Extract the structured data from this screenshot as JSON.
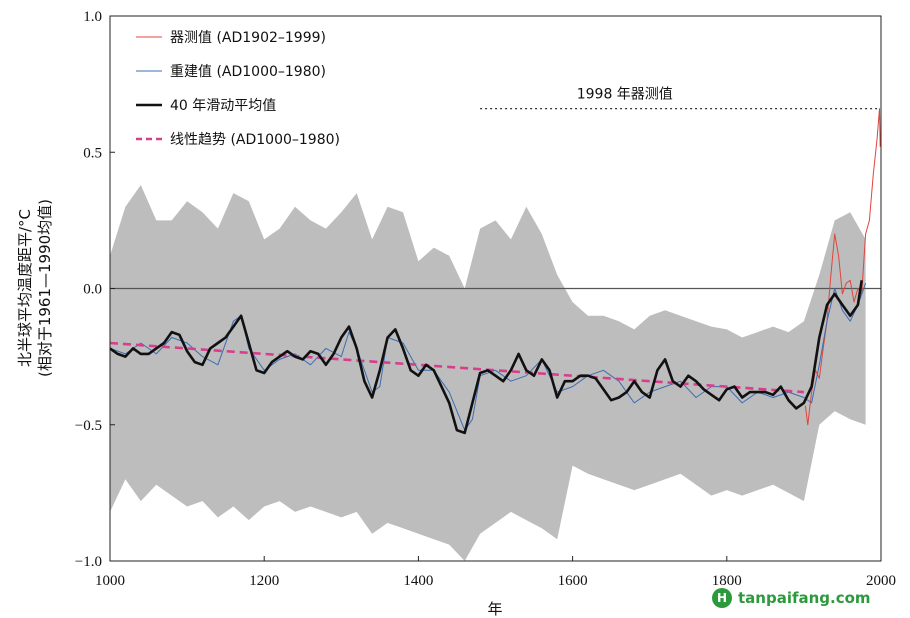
{
  "chart_data": {
    "type": "line",
    "xlabel": "年",
    "ylabel": [
      "北半球平均温度距平/°C",
      "(相对于1961—1990均值)"
    ],
    "xlim": [
      1000,
      2000
    ],
    "ylim": [
      -1.0,
      1.0
    ],
    "x_ticks": [
      1000,
      1200,
      1400,
      1600,
      1800,
      2000
    ],
    "y_ticks": [
      -1.0,
      -0.5,
      0.0,
      0.5,
      1.0
    ],
    "y_tick_labels": [
      "−1.0",
      "−0.5",
      "0.0",
      "0.5",
      "1.0"
    ],
    "legend_position": "top-left",
    "zero_line": 0.0,
    "annotation": {
      "text": "1998 年器测值",
      "value": 0.66,
      "x_range": [
        1480,
        1998
      ]
    },
    "series": [
      {
        "name": "器测值 (AD1902–1999)",
        "style": "thin-line",
        "color": "#e0443c",
        "x": [
          1902,
          1905,
          1910,
          1915,
          1920,
          1925,
          1930,
          1935,
          1940,
          1945,
          1950,
          1955,
          1960,
          1965,
          1970,
          1975,
          1980,
          1985,
          1990,
          1995,
          1998,
          1999
        ],
        "y": [
          -0.43,
          -0.5,
          -0.38,
          -0.3,
          -0.33,
          -0.22,
          -0.12,
          0.05,
          0.2,
          0.12,
          -0.02,
          0.02,
          0.03,
          -0.05,
          0.0,
          -0.02,
          0.2,
          0.25,
          0.42,
          0.55,
          0.66,
          0.52
        ]
      },
      {
        "name": "重建值 (AD1000–1980)",
        "style": "thin-line",
        "color": "#3d6db5",
        "x": [
          1000,
          1020,
          1040,
          1060,
          1080,
          1100,
          1120,
          1140,
          1160,
          1170,
          1180,
          1200,
          1220,
          1240,
          1260,
          1280,
          1300,
          1310,
          1320,
          1340,
          1350,
          1360,
          1380,
          1400,
          1420,
          1440,
          1460,
          1470,
          1480,
          1500,
          1520,
          1540,
          1560,
          1580,
          1600,
          1620,
          1640,
          1660,
          1680,
          1700,
          1720,
          1740,
          1760,
          1780,
          1800,
          1820,
          1840,
          1860,
          1880,
          1900,
          1910,
          1920,
          1930,
          1940,
          1950,
          1960,
          1970,
          1980
        ],
        "y": [
          -0.22,
          -0.24,
          -0.2,
          -0.24,
          -0.18,
          -0.2,
          -0.25,
          -0.28,
          -0.12,
          -0.1,
          -0.22,
          -0.3,
          -0.26,
          -0.24,
          -0.28,
          -0.22,
          -0.25,
          -0.16,
          -0.22,
          -0.38,
          -0.36,
          -0.18,
          -0.2,
          -0.3,
          -0.3,
          -0.38,
          -0.52,
          -0.48,
          -0.32,
          -0.3,
          -0.34,
          -0.32,
          -0.26,
          -0.38,
          -0.36,
          -0.32,
          -0.3,
          -0.34,
          -0.42,
          -0.38,
          -0.36,
          -0.34,
          -0.4,
          -0.36,
          -0.36,
          -0.42,
          -0.38,
          -0.4,
          -0.38,
          -0.4,
          -0.42,
          -0.28,
          -0.12,
          0.0,
          -0.08,
          -0.12,
          -0.06,
          0.02
        ]
      },
      {
        "name": "40 年滑动平均值",
        "style": "thick-line",
        "color": "#111111",
        "x": [
          1000,
          1010,
          1020,
          1030,
          1040,
          1050,
          1060,
          1070,
          1080,
          1090,
          1100,
          1110,
          1120,
          1130,
          1140,
          1150,
          1160,
          1170,
          1180,
          1190,
          1200,
          1210,
          1220,
          1230,
          1240,
          1250,
          1260,
          1270,
          1280,
          1290,
          1300,
          1310,
          1320,
          1330,
          1340,
          1350,
          1360,
          1370,
          1380,
          1390,
          1400,
          1410,
          1420,
          1430,
          1440,
          1450,
          1460,
          1470,
          1480,
          1490,
          1500,
          1510,
          1520,
          1530,
          1540,
          1550,
          1560,
          1570,
          1580,
          1590,
          1600,
          1610,
          1620,
          1630,
          1640,
          1650,
          1660,
          1670,
          1680,
          1690,
          1700,
          1710,
          1720,
          1730,
          1740,
          1750,
          1760,
          1770,
          1780,
          1790,
          1800,
          1810,
          1820,
          1830,
          1840,
          1850,
          1860,
          1870,
          1880,
          1890,
          1900,
          1910,
          1920,
          1930,
          1940,
          1950,
          1960,
          1970,
          1975
        ],
        "y": [
          -0.22,
          -0.24,
          -0.25,
          -0.22,
          -0.24,
          -0.24,
          -0.22,
          -0.2,
          -0.16,
          -0.17,
          -0.23,
          -0.27,
          -0.28,
          -0.22,
          -0.2,
          -0.18,
          -0.14,
          -0.1,
          -0.2,
          -0.3,
          -0.31,
          -0.27,
          -0.25,
          -0.23,
          -0.25,
          -0.26,
          -0.23,
          -0.24,
          -0.28,
          -0.24,
          -0.18,
          -0.14,
          -0.22,
          -0.34,
          -0.4,
          -0.3,
          -0.18,
          -0.15,
          -0.22,
          -0.3,
          -0.32,
          -0.28,
          -0.3,
          -0.36,
          -0.42,
          -0.52,
          -0.53,
          -0.42,
          -0.31,
          -0.3,
          -0.32,
          -0.34,
          -0.3,
          -0.24,
          -0.3,
          -0.32,
          -0.26,
          -0.3,
          -0.4,
          -0.34,
          -0.34,
          -0.32,
          -0.32,
          -0.33,
          -0.37,
          -0.41,
          -0.4,
          -0.38,
          -0.34,
          -0.38,
          -0.4,
          -0.3,
          -0.26,
          -0.34,
          -0.36,
          -0.32,
          -0.34,
          -0.37,
          -0.39,
          -0.41,
          -0.37,
          -0.36,
          -0.4,
          -0.38,
          -0.38,
          -0.38,
          -0.39,
          -0.36,
          -0.41,
          -0.44,
          -0.42,
          -0.36,
          -0.18,
          -0.06,
          -0.02,
          -0.06,
          -0.1,
          -0.06,
          0.03
        ]
      },
      {
        "name": "线性趋势 (AD1000–1980)",
        "style": "dashed-line",
        "color": "#d63f8c",
        "x": [
          1000,
          1900
        ],
        "y": [
          -0.2,
          -0.38
        ]
      },
      {
        "name": "uncertainty band",
        "style": "band",
        "color": "#bdbdbd",
        "x": [
          1000,
          1020,
          1040,
          1060,
          1080,
          1100,
          1120,
          1140,
          1160,
          1180,
          1200,
          1220,
          1240,
          1260,
          1280,
          1300,
          1320,
          1340,
          1360,
          1380,
          1400,
          1420,
          1440,
          1460,
          1480,
          1500,
          1520,
          1540,
          1560,
          1580,
          1600,
          1620,
          1640,
          1660,
          1680,
          1700,
          1720,
          1740,
          1760,
          1780,
          1800,
          1820,
          1840,
          1860,
          1880,
          1900,
          1920,
          1940,
          1960,
          1980
        ],
        "upper": [
          0.12,
          0.3,
          0.38,
          0.25,
          0.25,
          0.32,
          0.28,
          0.22,
          0.35,
          0.32,
          0.18,
          0.22,
          0.3,
          0.25,
          0.22,
          0.28,
          0.35,
          0.18,
          0.3,
          0.28,
          0.1,
          0.15,
          0.12,
          0.0,
          0.22,
          0.25,
          0.18,
          0.3,
          0.2,
          0.05,
          -0.05,
          -0.1,
          -0.1,
          -0.12,
          -0.15,
          -0.1,
          -0.08,
          -0.1,
          -0.12,
          -0.14,
          -0.15,
          -0.18,
          -0.16,
          -0.14,
          -0.16,
          -0.12,
          0.05,
          0.25,
          0.28,
          0.18
        ],
        "lower": [
          -0.82,
          -0.7,
          -0.78,
          -0.72,
          -0.76,
          -0.8,
          -0.78,
          -0.84,
          -0.8,
          -0.85,
          -0.8,
          -0.78,
          -0.82,
          -0.8,
          -0.82,
          -0.84,
          -0.82,
          -0.9,
          -0.86,
          -0.88,
          -0.9,
          -0.92,
          -0.94,
          -1.0,
          -0.9,
          -0.86,
          -0.82,
          -0.85,
          -0.88,
          -0.92,
          -0.65,
          -0.68,
          -0.7,
          -0.72,
          -0.74,
          -0.72,
          -0.7,
          -0.68,
          -0.72,
          -0.76,
          -0.74,
          -0.76,
          -0.74,
          -0.72,
          -0.75,
          -0.78,
          -0.5,
          -0.45,
          -0.48,
          -0.5
        ]
      }
    ]
  },
  "watermark": {
    "logo_letter": "H",
    "text": "tanpaifang.com",
    "color": "#2c9a3c"
  }
}
